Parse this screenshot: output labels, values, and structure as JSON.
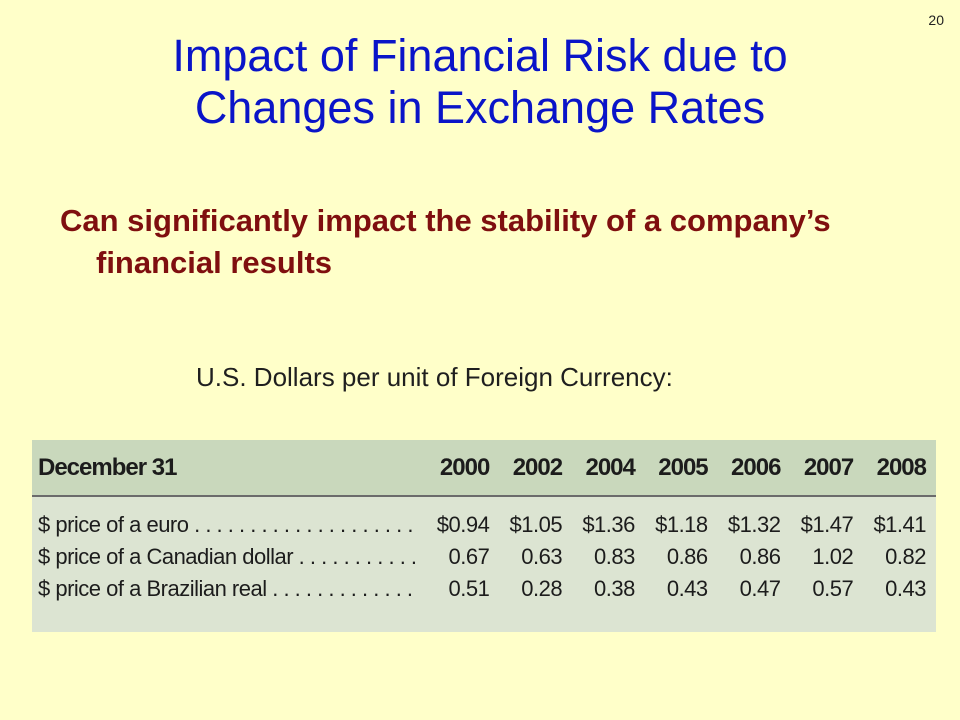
{
  "slide_number": "20",
  "title_line1": "Impact of Financial Risk due to",
  "title_line2": "Changes in Exchange Rates",
  "bullet": "Can significantly impact the stability of a company’s financial results",
  "caption": "U.S. Dollars per unit of Foreign Currency:",
  "table": {
    "header_label": "December 31",
    "years": [
      "2000",
      "2002",
      "2004",
      "2005",
      "2006",
      "2007",
      "2008"
    ],
    "rows": [
      {
        "label": "$ price of a euro . . . . . . . . . . . . . . . . . . . .",
        "values": [
          "$0.94",
          "$1.05",
          "$1.36",
          "$1.18",
          "$1.32",
          "$1.47",
          "$1.41"
        ]
      },
      {
        "label": "$ price of a Canadian dollar . . . . . . . . . . .",
        "values": [
          "0.67",
          "0.63",
          "0.83",
          "0.86",
          "0.86",
          "1.02",
          "0.82"
        ]
      },
      {
        "label": "$ price of a Brazilian real . . . . . . . . . . . . .",
        "values": [
          "0.51",
          "0.28",
          "0.38",
          "0.43",
          "0.47",
          "0.57",
          "0.43"
        ]
      }
    ]
  }
}
